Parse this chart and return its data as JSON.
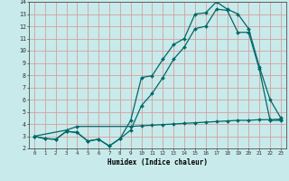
{
  "xlabel": "Humidex (Indice chaleur)",
  "bg_color": "#c8eaea",
  "grid_color": "#d4a0a0",
  "line_color": "#006868",
  "xlim": [
    -0.5,
    23.5
  ],
  "ylim": [
    2,
    14
  ],
  "xticks": [
    0,
    1,
    2,
    3,
    4,
    5,
    6,
    7,
    8,
    9,
    10,
    11,
    12,
    13,
    14,
    15,
    16,
    17,
    18,
    19,
    20,
    21,
    22,
    23
  ],
  "yticks": [
    2,
    3,
    4,
    5,
    6,
    7,
    8,
    9,
    10,
    11,
    12,
    13,
    14
  ],
  "line1_x": [
    0,
    1,
    2,
    3,
    4,
    5,
    6,
    7,
    8,
    9,
    10,
    11,
    12,
    13,
    14,
    15,
    16,
    17,
    18,
    19,
    20,
    21,
    22,
    23
  ],
  "line1_y": [
    3.0,
    2.8,
    2.75,
    3.4,
    3.3,
    2.6,
    2.75,
    2.2,
    2.8,
    4.3,
    7.8,
    7.95,
    9.3,
    10.5,
    11.0,
    13.0,
    13.1,
    14.0,
    13.4,
    13.0,
    11.8,
    8.7,
    6.0,
    4.5
  ],
  "line2_x": [
    0,
    1,
    2,
    3,
    4,
    5,
    6,
    7,
    8,
    9,
    10,
    11,
    12,
    13,
    14,
    15,
    16,
    17,
    18,
    19,
    20,
    21,
    22,
    23
  ],
  "line2_y": [
    3.0,
    2.8,
    2.75,
    3.4,
    3.3,
    2.6,
    2.75,
    2.2,
    2.8,
    3.5,
    5.5,
    6.5,
    7.8,
    9.3,
    10.3,
    11.8,
    12.0,
    13.4,
    13.3,
    11.5,
    11.5,
    8.5,
    4.3,
    4.3
  ],
  "line3_x": [
    0,
    3,
    4,
    9,
    10,
    11,
    12,
    13,
    14,
    15,
    16,
    17,
    18,
    19,
    20,
    21,
    22,
    23
  ],
  "line3_y": [
    3.0,
    3.5,
    3.8,
    3.8,
    3.85,
    3.9,
    3.95,
    4.0,
    4.05,
    4.1,
    4.15,
    4.2,
    4.25,
    4.3,
    4.3,
    4.35,
    4.35,
    4.4
  ]
}
